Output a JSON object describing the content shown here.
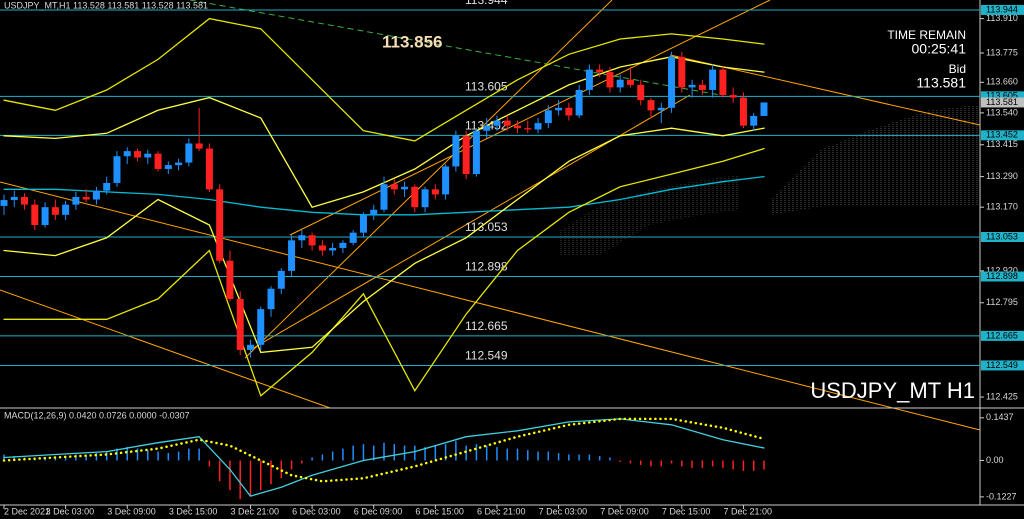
{
  "chart_data": [
    {
      "type": "candlestick",
      "title": "USDJPY_MT,H1  113.528 113.581 113.528 113.581",
      "watermark": "USDJPY_MT H1",
      "time_remain_label": "TIME REMAIN",
      "time_remain": "00:25:41",
      "bid_label": "Bid",
      "bid": 113.581,
      "marked_level": 113.856,
      "categories": [
        "2 Dec 2021",
        null,
        null,
        null,
        null,
        null,
        "3 Dec 03:00",
        null,
        null,
        null,
        null,
        null,
        "3 Dec 09:00",
        null,
        null,
        null,
        null,
        null,
        "3 Dec 15:00",
        null,
        null,
        null,
        null,
        null,
        "3 Dec 21:00",
        null,
        null,
        null,
        null,
        null,
        "6 Dec 03:00",
        null,
        null,
        null,
        null,
        null,
        "6 Dec 09:00",
        null,
        null,
        null,
        null,
        null,
        "6 Dec 15:00",
        null,
        null,
        null,
        null,
        null,
        "6 Dec 21:00",
        null,
        null,
        null,
        null,
        null,
        "7 Dec 03:00",
        null,
        null,
        null,
        null,
        null,
        "7 Dec 09:00",
        null,
        null,
        null,
        null,
        null,
        "7 Dec 15:00",
        null,
        null,
        null,
        null,
        null,
        "7 Dec 21:00",
        null,
        null
      ],
      "open": [
        113.175,
        113.198,
        113.21,
        113.18,
        113.1,
        113.17,
        113.14,
        113.18,
        113.21,
        113.2,
        113.235,
        113.265,
        113.37,
        113.39,
        113.365,
        113.38,
        113.32,
        113.335,
        113.345,
        113.42,
        113.4,
        113.24,
        112.96,
        112.81,
        112.61,
        112.63,
        112.77,
        112.85,
        112.92,
        113.04,
        113.06,
        113.02,
        113.0,
        113.01,
        113.03,
        113.07,
        113.14,
        113.16,
        113.26,
        113.24,
        113.25,
        113.17,
        113.24,
        113.22,
        113.33,
        113.45,
        113.3,
        113.47,
        113.49,
        113.51,
        113.49,
        113.48,
        113.475,
        113.5,
        113.55,
        113.56,
        113.53,
        113.63,
        113.71,
        113.7,
        113.64,
        113.67,
        113.65,
        113.59,
        113.55,
        113.56,
        113.76,
        113.64,
        113.65,
        113.63,
        113.71,
        113.61,
        113.6,
        113.49,
        113.528
      ],
      "high": [
        113.22,
        113.235,
        113.225,
        113.2,
        113.19,
        113.2,
        113.195,
        113.23,
        113.24,
        113.25,
        113.29,
        113.39,
        113.405,
        113.4,
        113.395,
        113.39,
        113.35,
        113.36,
        113.44,
        113.56,
        113.42,
        113.26,
        113.0,
        112.84,
        112.65,
        112.78,
        112.86,
        112.93,
        113.06,
        113.08,
        113.07,
        113.04,
        113.03,
        113.04,
        113.08,
        113.15,
        113.18,
        113.29,
        113.28,
        113.27,
        113.26,
        113.25,
        113.26,
        113.34,
        113.47,
        113.47,
        113.48,
        113.52,
        113.53,
        113.53,
        113.51,
        113.51,
        113.52,
        113.57,
        113.59,
        113.58,
        113.65,
        113.73,
        113.73,
        113.72,
        113.69,
        113.72,
        113.67,
        113.6,
        113.58,
        113.78,
        113.78,
        113.67,
        113.67,
        113.73,
        113.72,
        113.64,
        113.62,
        113.54,
        113.581
      ],
      "low": [
        113.14,
        113.17,
        113.16,
        113.08,
        113.09,
        113.12,
        113.12,
        113.16,
        113.19,
        113.18,
        113.22,
        113.25,
        113.34,
        113.35,
        113.34,
        113.31,
        113.3,
        113.315,
        113.33,
        113.39,
        113.23,
        112.95,
        112.8,
        112.59,
        112.58,
        112.61,
        112.74,
        112.83,
        112.9,
        113.01,
        113.0,
        112.98,
        112.98,
        112.99,
        113.02,
        113.05,
        113.12,
        113.15,
        113.22,
        113.21,
        113.15,
        113.15,
        113.2,
        113.2,
        113.31,
        113.28,
        113.29,
        113.44,
        113.47,
        113.47,
        113.46,
        113.46,
        113.46,
        113.48,
        113.53,
        113.51,
        113.52,
        113.61,
        113.68,
        113.62,
        113.62,
        113.64,
        113.57,
        113.52,
        113.5,
        113.54,
        113.62,
        113.6,
        113.61,
        113.6,
        113.6,
        113.58,
        113.48,
        113.47,
        113.528
      ],
      "close": [
        113.198,
        113.21,
        113.18,
        113.1,
        113.17,
        113.14,
        113.18,
        113.21,
        113.2,
        113.235,
        113.265,
        113.37,
        113.39,
        113.365,
        113.38,
        113.32,
        113.335,
        113.345,
        113.42,
        113.4,
        113.24,
        112.96,
        112.81,
        112.61,
        112.63,
        112.77,
        112.85,
        112.92,
        113.04,
        113.06,
        113.02,
        113.0,
        113.01,
        113.03,
        113.07,
        113.14,
        113.16,
        113.26,
        113.24,
        113.25,
        113.17,
        113.24,
        113.22,
        113.33,
        113.45,
        113.3,
        113.47,
        113.49,
        113.51,
        113.49,
        113.48,
        113.475,
        113.5,
        113.55,
        113.56,
        113.53,
        113.63,
        113.71,
        113.7,
        113.64,
        113.67,
        113.65,
        113.59,
        113.55,
        113.56,
        113.76,
        113.64,
        113.65,
        113.63,
        113.71,
        113.61,
        113.6,
        113.49,
        113.528,
        113.581
      ],
      "up_color": "#1e90ff",
      "down_color": "#ff2020",
      "ylim": [
        112.382,
        113.983
      ],
      "yticks": [
        {
          "value": 113.91,
          "label": "113.910"
        },
        113.775,
        {
          "value": 113.66,
          "label": "113.660"
        },
        {
          "value": 113.54,
          "label": "113.540"
        },
        113.415,
        {
          "value": 113.29,
          "label": "113.290"
        },
        {
          "value": 113.17,
          "label": "113.170"
        },
        {
          "value": 112.92,
          "label": "112.920"
        },
        112.795,
        112.425
      ],
      "levels": [
        113.944,
        113.605,
        113.452,
        113.053,
        112.898,
        112.665,
        112.549
      ],
      "level_color": "#20b2c8",
      "overlays": [
        {
          "color": "#00bcd4",
          "x": [
            0,
            5,
            10,
            15,
            20,
            25,
            30,
            35,
            40,
            45,
            50,
            55,
            60,
            65,
            70,
            74
          ],
          "values": [
            113.24,
            113.24,
            113.23,
            113.22,
            113.2,
            113.17,
            113.15,
            113.14,
            113.14,
            113.15,
            113.16,
            113.17,
            113.2,
            113.24,
            113.27,
            113.29
          ]
        },
        {
          "color": "#e6e600",
          "x": [
            0,
            5,
            10,
            15,
            20,
            25,
            30,
            35,
            40,
            45,
            50,
            55,
            60,
            65,
            70,
            74
          ],
          "values": [
            113.59,
            113.55,
            113.63,
            113.75,
            113.91,
            113.87,
            113.67,
            113.47,
            113.43,
            113.55,
            113.67,
            113.77,
            113.83,
            113.85,
            113.83,
            113.81
          ]
        },
        {
          "color": "#e6e600",
          "x": [
            0,
            5,
            10,
            15,
            20,
            25,
            30,
            35,
            40,
            45,
            50,
            55,
            60,
            65,
            70,
            74
          ],
          "values": [
            112.73,
            112.73,
            112.73,
            112.81,
            113.0,
            112.43,
            112.6,
            112.83,
            112.45,
            112.75,
            113.0,
            113.15,
            113.25,
            113.3,
            113.35,
            113.4
          ]
        },
        {
          "color": "#ffff40",
          "x": [
            0,
            5,
            10,
            15,
            20,
            25,
            30,
            35,
            40,
            45,
            50,
            55,
            60,
            65,
            70,
            74
          ],
          "values": [
            113.45,
            113.44,
            113.46,
            113.55,
            113.6,
            113.52,
            113.17,
            113.23,
            113.32,
            113.45,
            113.55,
            113.65,
            113.72,
            113.76,
            113.72,
            113.7
          ]
        },
        {
          "color": "#ffff40",
          "x": [
            0,
            5,
            10,
            15,
            20,
            25,
            30,
            35,
            40,
            45,
            50,
            55,
            60,
            65,
            70,
            74
          ],
          "values": [
            113.0,
            112.98,
            113.05,
            113.2,
            113.1,
            112.6,
            112.62,
            112.8,
            112.95,
            113.05,
            113.2,
            113.35,
            113.45,
            113.48,
            113.45,
            113.48
          ]
        }
      ]
    },
    {
      "type": "macd",
      "title": "MACD(12,26,9) 0.0420 0.0726 0.0000 -0.0307",
      "histogram": [
        0.02,
        0.015,
        0.01,
        0.005,
        0.01,
        0.01,
        0.015,
        0.02,
        0.02,
        0.025,
        0.03,
        0.04,
        0.045,
        0.04,
        0.035,
        0.03,
        0.025,
        0.03,
        0.04,
        0.04,
        -0.02,
        -0.07,
        -0.1,
        -0.13,
        -0.12,
        -0.1,
        -0.08,
        -0.06,
        -0.03,
        -0.01,
        0.01,
        0.02,
        0.03,
        0.04,
        0.05,
        0.055,
        0.05,
        0.06,
        0.055,
        0.05,
        0.05,
        0.045,
        0.05,
        0.055,
        0.065,
        0.05,
        0.055,
        0.05,
        0.045,
        0.04,
        0.04,
        0.035,
        0.03,
        0.03,
        0.025,
        0.02,
        0.02,
        0.02,
        0.015,
        0.01,
        -0.005,
        -0.01,
        -0.015,
        -0.02,
        -0.02,
        -0.01,
        -0.02,
        -0.025,
        -0.025,
        -0.02,
        -0.025,
        -0.03,
        -0.035,
        -0.035,
        -0.0307
      ],
      "up_color": "#1e90ff",
      "down_color": "#ff2020",
      "main": {
        "color": "#40d0e0",
        "x": [
          0,
          5,
          10,
          15,
          19,
          22,
          24,
          27,
          30,
          35,
          40,
          45,
          50,
          55,
          60,
          65,
          70,
          74
        ],
        "values": [
          0.01,
          0.02,
          0.03,
          0.06,
          0.08,
          -0.03,
          -0.12,
          -0.09,
          -0.05,
          0.0,
          0.03,
          0.08,
          0.1,
          0.13,
          0.14,
          0.12,
          0.07,
          0.042
        ]
      },
      "signal": {
        "color": "#ffff00",
        "x": [
          0,
          5,
          10,
          15,
          19,
          22,
          25,
          28,
          31,
          35,
          40,
          45,
          50,
          55,
          60,
          65,
          70,
          74
        ],
        "values": [
          0.0,
          0.01,
          0.02,
          0.04,
          0.07,
          0.05,
          0.0,
          -0.05,
          -0.07,
          -0.06,
          -0.02,
          0.03,
          0.08,
          0.12,
          0.14,
          0.14,
          0.11,
          0.0726
        ]
      },
      "ylim": [
        -0.15,
        0.17
      ],
      "yticks": [
        0.1437,
        {
          "value": 0,
          "label": "0.00"
        },
        -0.1227
      ]
    }
  ]
}
